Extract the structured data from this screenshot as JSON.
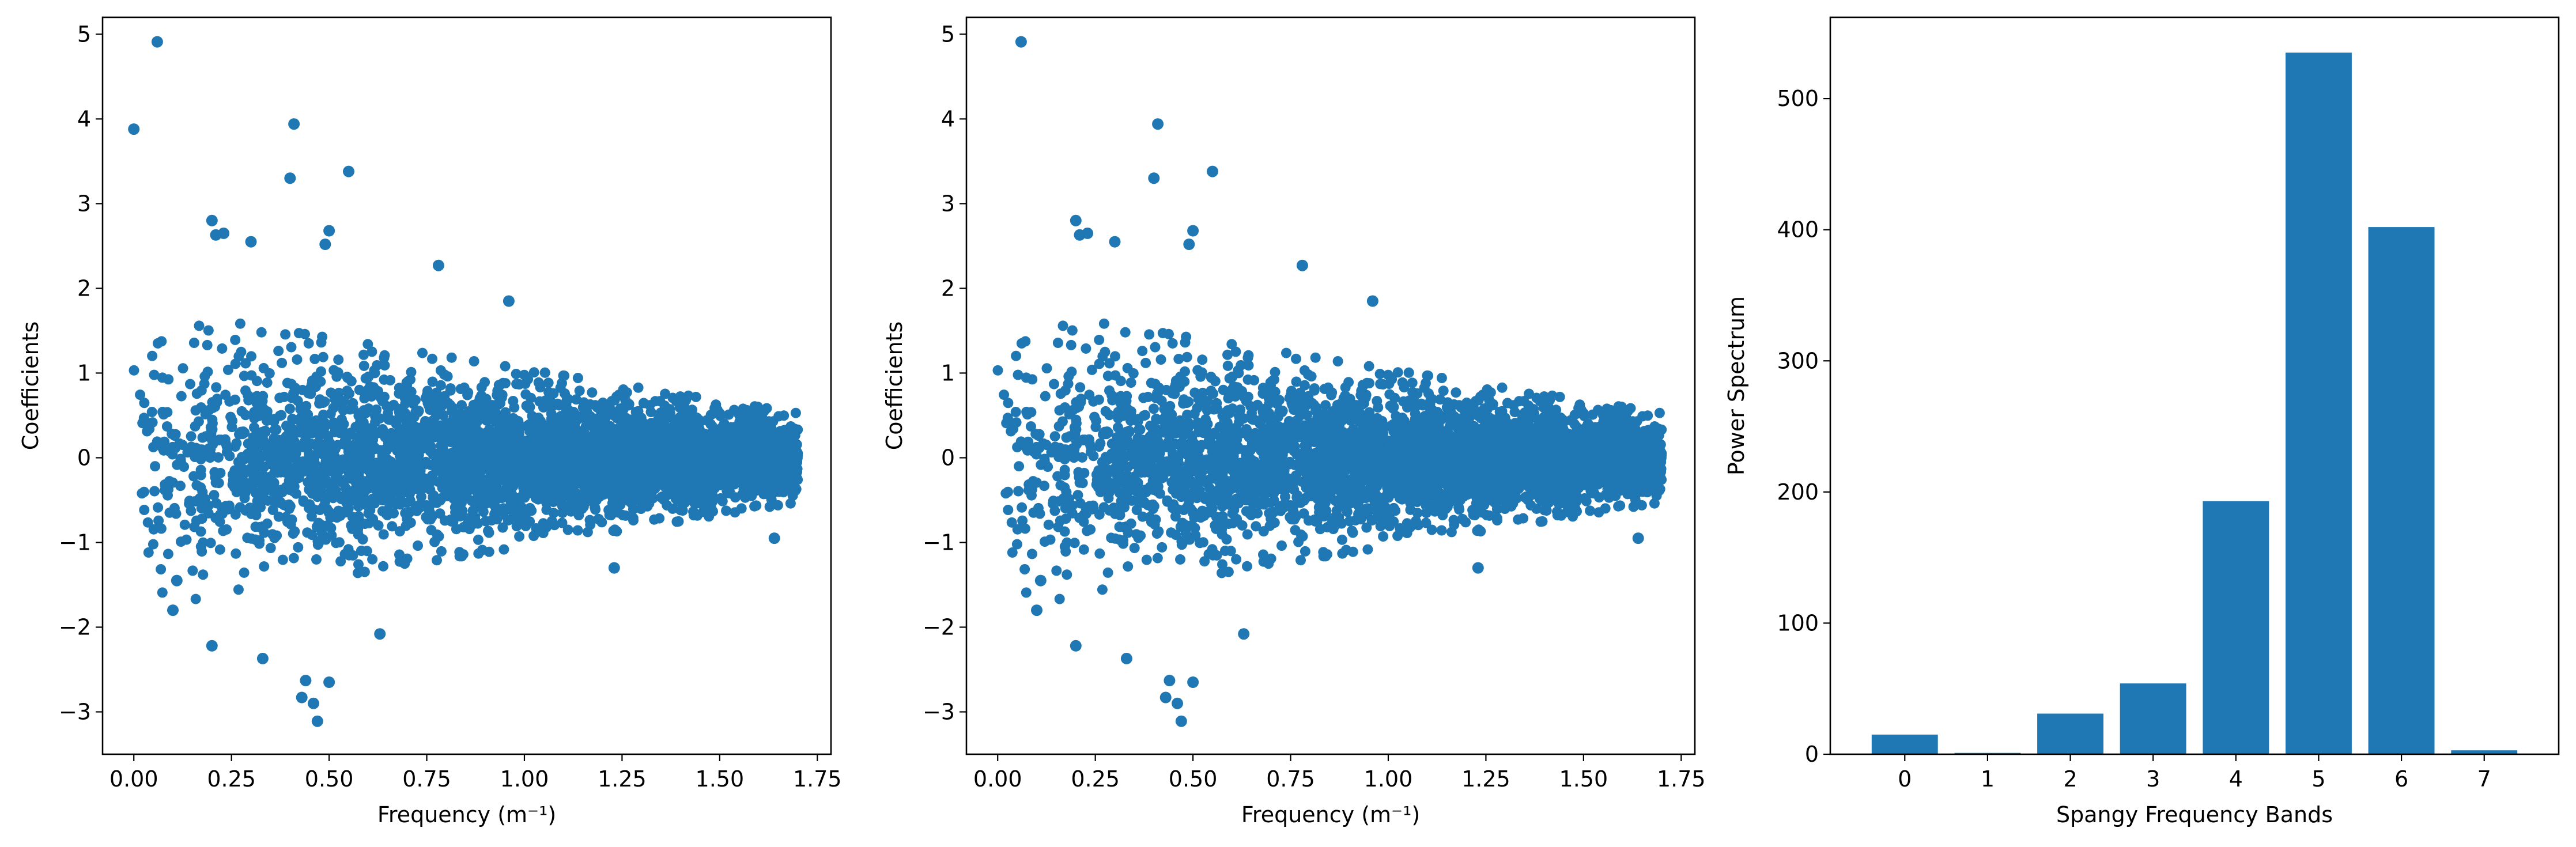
{
  "figure": {
    "background": "#ffffff",
    "accent": "#1f77b4"
  },
  "chart_data": [
    {
      "type": "scatter",
      "xlabel": "Frequency (m⁻¹)",
      "ylabel": "Coefficients",
      "xlim": [
        -0.08,
        1.785
      ],
      "ylim": [
        -3.5,
        5.2
      ],
      "xticks": [
        0.0,
        0.25,
        0.5,
        0.75,
        1.0,
        1.25,
        1.5,
        1.75
      ],
      "xtick_labels": [
        "0.00",
        "0.25",
        "0.50",
        "0.75",
        "1.00",
        "1.25",
        "1.50",
        "1.75"
      ],
      "yticks": [
        -3,
        -2,
        -1,
        0,
        1,
        2,
        3,
        4,
        5
      ],
      "ytick_labels": [
        "−3",
        "−2",
        "−1",
        "0",
        "1",
        "2",
        "3",
        "4",
        "5"
      ],
      "color": "#1f77b4",
      "series": [
        {
          "highlighted_points": [
            [
              0.0,
              3.88
            ],
            [
              0.06,
              4.91
            ],
            [
              0.41,
              3.94
            ],
            [
              0.4,
              3.3
            ],
            [
              0.55,
              3.38
            ],
            [
              0.2,
              2.8
            ],
            [
              0.21,
              2.63
            ],
            [
              0.23,
              2.65
            ],
            [
              0.3,
              2.55
            ],
            [
              0.5,
              2.68
            ],
            [
              0.49,
              2.52
            ],
            [
              0.78,
              2.27
            ],
            [
              0.96,
              1.85
            ],
            [
              0.2,
              -2.22
            ],
            [
              0.33,
              -2.37
            ],
            [
              0.44,
              -2.63
            ],
            [
              0.43,
              -2.83
            ],
            [
              0.46,
              -2.9
            ],
            [
              0.47,
              -3.11
            ],
            [
              0.5,
              -2.65
            ],
            [
              0.63,
              -2.08
            ],
            [
              1.23,
              -1.3
            ],
            [
              0.1,
              -1.8
            ],
            [
              0.11,
              -1.45
            ],
            [
              1.64,
              -0.95
            ]
          ],
          "cloud": {
            "description_points": "dense cloud of approximately 4000 coefficients",
            "x_range": [
              0.0,
              1.7
            ],
            "envelope_half_width_at_x0": 1.7,
            "envelope_half_width_at_x1_7": 0.5
          }
        }
      ]
    },
    {
      "type": "scatter",
      "xlabel": "Frequency (m⁻¹)",
      "ylabel": "Coefficients",
      "xlim": [
        -0.08,
        1.785
      ],
      "ylim": [
        -3.5,
        5.2
      ],
      "xticks": [
        0.0,
        0.25,
        0.5,
        0.75,
        1.0,
        1.25,
        1.5,
        1.75
      ],
      "xtick_labels": [
        "0.00",
        "0.25",
        "0.50",
        "0.75",
        "1.00",
        "1.25",
        "1.50",
        "1.75"
      ],
      "yticks": [
        -3,
        -2,
        -1,
        0,
        1,
        2,
        3,
        4,
        5
      ],
      "ytick_labels": [
        "−3",
        "−2",
        "−1",
        "0",
        "1",
        "2",
        "3",
        "4",
        "5"
      ],
      "color": "#1f77b4",
      "series": [
        {
          "highlighted_points": [
            [
              0.06,
              4.91
            ],
            [
              0.41,
              3.94
            ],
            [
              0.4,
              3.3
            ],
            [
              0.55,
              3.38
            ],
            [
              0.2,
              2.8
            ],
            [
              0.21,
              2.63
            ],
            [
              0.23,
              2.65
            ],
            [
              0.3,
              2.55
            ],
            [
              0.5,
              2.68
            ],
            [
              0.49,
              2.52
            ],
            [
              0.78,
              2.27
            ],
            [
              0.96,
              1.85
            ],
            [
              0.2,
              -2.22
            ],
            [
              0.33,
              -2.37
            ],
            [
              0.44,
              -2.63
            ],
            [
              0.43,
              -2.83
            ],
            [
              0.46,
              -2.9
            ],
            [
              0.47,
              -3.11
            ],
            [
              0.5,
              -2.65
            ],
            [
              0.63,
              -2.08
            ],
            [
              1.23,
              -1.3
            ],
            [
              0.1,
              -1.8
            ],
            [
              0.11,
              -1.45
            ],
            [
              1.64,
              -0.95
            ]
          ],
          "cloud": {
            "description_points": "dense cloud of approximately 4000 coefficients",
            "x_range": [
              0.0,
              1.7
            ],
            "envelope_half_width_at_x0": 1.7,
            "envelope_half_width_at_x1_7": 0.5
          }
        }
      ]
    },
    {
      "type": "bar",
      "xlabel": "Spangy Frequency Bands",
      "ylabel": "Power Spectrum",
      "categories": [
        "0",
        "1",
        "2",
        "3",
        "4",
        "5",
        "6",
        "7"
      ],
      "values": [
        15,
        1,
        31,
        54,
        193,
        535,
        402,
        3
      ],
      "xlim": [
        -0.9,
        7.9
      ],
      "ylim": [
        0,
        562
      ],
      "yticks": [
        0,
        100,
        200,
        300,
        400,
        500
      ],
      "ytick_labels": [
        "0",
        "100",
        "200",
        "300",
        "400",
        "500"
      ],
      "color": "#1f77b4"
    }
  ]
}
